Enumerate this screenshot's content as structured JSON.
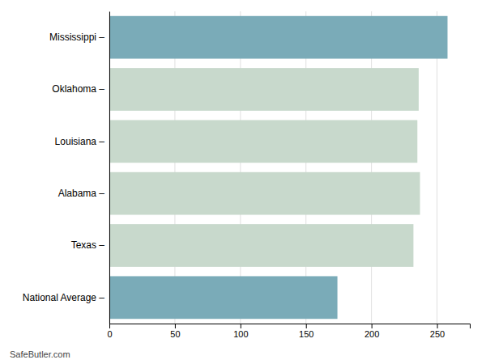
{
  "chart_data": {
    "type": "bar",
    "orientation": "horizontal",
    "categories": [
      "Mississippi –",
      "Oklahoma –",
      "Louisiana –",
      "Alabama –",
      "Texas –",
      "National Average –"
    ],
    "values": [
      258,
      236,
      235,
      237,
      232,
      174
    ],
    "colors": [
      "#7aabb8",
      "#c8d9cc",
      "#c8d9cc",
      "#c8d9cc",
      "#c8d9cc",
      "#7aabb8"
    ],
    "xlim": [
      0,
      275
    ],
    "xticks": [
      0,
      50,
      100,
      150,
      200,
      250
    ],
    "grid": true,
    "annotations": [
      "SafeButler.com"
    ]
  }
}
